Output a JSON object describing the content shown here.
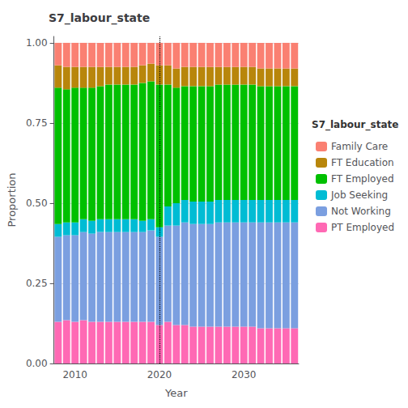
{
  "chart_data": {
    "type": "bar",
    "title": "S7_labour_state",
    "xlabel": "Year",
    "ylabel": "Proportion",
    "legend_title": "S7_labour_state",
    "stacked": true,
    "grid": true,
    "legend": "right",
    "categories": [
      null,
      null,
      "2010",
      null,
      null,
      null,
      null,
      null,
      null,
      null,
      null,
      null,
      "2020",
      null,
      null,
      null,
      null,
      null,
      null,
      null,
      null,
      null,
      "2030",
      null,
      null,
      null,
      null,
      null,
      null
    ],
    "vline_x": "2020",
    "ylim": [
      0,
      1.02
    ],
    "yticks": [
      {
        "value": 0.0,
        "label": "0.00"
      },
      0.25,
      {
        "value": 0.5,
        "label": "0.50"
      },
      0.75,
      {
        "value": 1.0,
        "label": "1.00"
      }
    ],
    "series": [
      {
        "name": "PT Employed",
        "color": "#FF69B4",
        "values": [
          0.13,
          0.135,
          0.13,
          0.135,
          0.13,
          0.13,
          0.13,
          0.13,
          0.13,
          0.13,
          0.13,
          0.13,
          0.12,
          0.13,
          0.12,
          0.12,
          0.115,
          0.115,
          0.115,
          0.115,
          0.115,
          0.115,
          0.115,
          0.115,
          0.11,
          0.11,
          0.11,
          0.11,
          0.11
        ]
      },
      {
        "name": "Not Working",
        "color": "#7B9FE0",
        "values": [
          0.265,
          0.265,
          0.27,
          0.275,
          0.275,
          0.28,
          0.28,
          0.28,
          0.28,
          0.28,
          0.28,
          0.285,
          0.275,
          0.3,
          0.31,
          0.32,
          0.32,
          0.32,
          0.32,
          0.325,
          0.325,
          0.325,
          0.325,
          0.325,
          0.33,
          0.33,
          0.33,
          0.33,
          0.33
        ]
      },
      {
        "name": "Job Seeking",
        "color": "#00BCD4",
        "values": [
          0.04,
          0.04,
          0.04,
          0.04,
          0.04,
          0.04,
          0.04,
          0.04,
          0.04,
          0.04,
          0.035,
          0.035,
          0.03,
          0.06,
          0.07,
          0.07,
          0.07,
          0.07,
          0.07,
          0.07,
          0.07,
          0.07,
          0.07,
          0.07,
          0.07,
          0.07,
          0.07,
          0.07,
          0.07
        ]
      },
      {
        "name": "FT Employed",
        "color": "#00C000",
        "values": [
          0.425,
          0.415,
          0.42,
          0.41,
          0.415,
          0.415,
          0.42,
          0.42,
          0.42,
          0.42,
          0.43,
          0.43,
          0.445,
          0.38,
          0.36,
          0.355,
          0.36,
          0.36,
          0.36,
          0.36,
          0.36,
          0.36,
          0.36,
          0.36,
          0.355,
          0.355,
          0.355,
          0.355,
          0.355
        ]
      },
      {
        "name": "FT Education",
        "color": "#B8860B",
        "values": [
          0.07,
          0.07,
          0.065,
          0.065,
          0.065,
          0.06,
          0.055,
          0.055,
          0.055,
          0.055,
          0.055,
          0.055,
          0.06,
          0.06,
          0.06,
          0.06,
          0.06,
          0.06,
          0.06,
          0.055,
          0.055,
          0.055,
          0.055,
          0.055,
          0.055,
          0.055,
          0.055,
          0.055,
          0.055
        ]
      },
      {
        "name": "Family Care",
        "color": "#FA8072",
        "values": [
          0.07,
          0.075,
          0.075,
          0.075,
          0.075,
          0.075,
          0.075,
          0.075,
          0.075,
          0.075,
          0.07,
          0.065,
          0.07,
          0.07,
          0.08,
          0.075,
          0.075,
          0.075,
          0.075,
          0.075,
          0.075,
          0.075,
          0.075,
          0.075,
          0.08,
          0.08,
          0.08,
          0.08,
          0.08
        ]
      }
    ]
  }
}
